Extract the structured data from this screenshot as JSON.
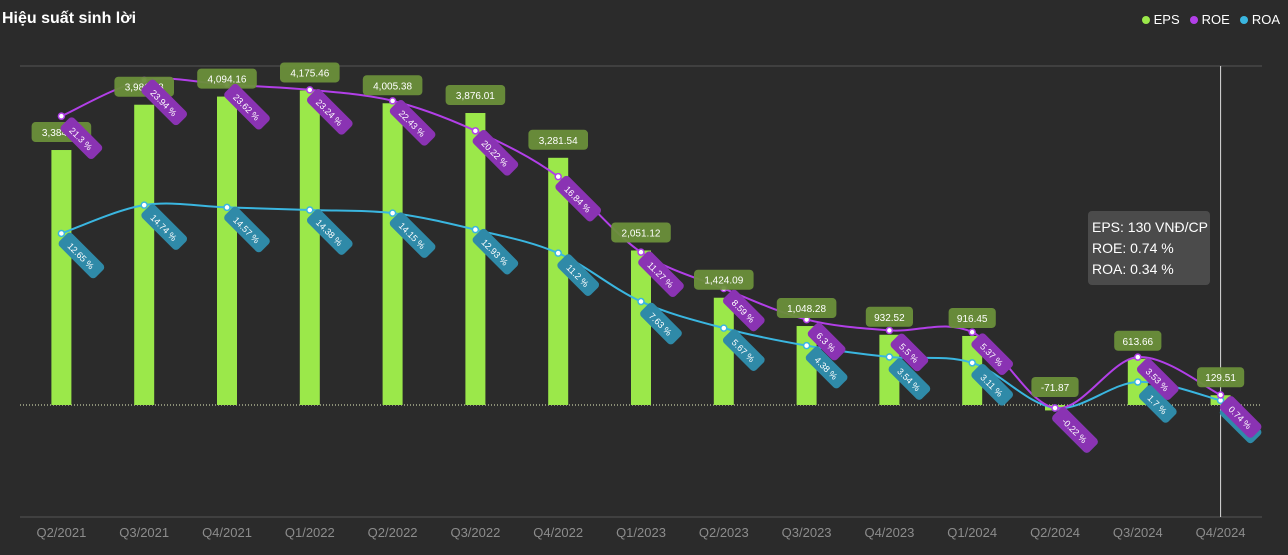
{
  "title": "Hiệu suất sinh lời",
  "legend": [
    {
      "name": "EPS",
      "color": "#9be84a"
    },
    {
      "name": "ROE",
      "color": "#b23fe8"
    },
    {
      "name": "ROA",
      "color": "#3ab6e0"
    }
  ],
  "tooltip": {
    "line1": "EPS: 130 VNĐ/CP",
    "line2": "ROE: 0.74 %",
    "line3": "ROA: 0.34 %"
  },
  "chart_data": {
    "type": "bar",
    "categories": [
      "Q2/2021",
      "Q3/2021",
      "Q4/2021",
      "Q1/2022",
      "Q2/2022",
      "Q3/2022",
      "Q4/2022",
      "Q1/2023",
      "Q2/2023",
      "Q3/2023",
      "Q4/2023",
      "Q1/2024",
      "Q2/2024",
      "Q3/2024",
      "Q4/2024"
    ],
    "series": [
      {
        "name": "EPS",
        "type": "bar",
        "color": "#9be84a",
        "values": [
          3384.67,
          3986.08,
          4094.16,
          4175.46,
          4005.38,
          3876.01,
          3281.54,
          2051.12,
          1424.09,
          1048.28,
          932.52,
          916.45,
          -71.87,
          613.66,
          129.51
        ],
        "labels": [
          "3,384.67",
          "3,986.08",
          "4,094.16",
          "4,175.46",
          "4,005.38",
          "3,876.01",
          "3,281.54",
          "2,051.12",
          "1,424.09",
          "1,048.28",
          "932.52",
          "916.45",
          "-71.87",
          "613.66",
          "129.51"
        ]
      },
      {
        "name": "ROE",
        "type": "line",
        "color": "#b23fe8",
        "values": [
          21.3,
          23.94,
          23.62,
          23.24,
          22.43,
          20.22,
          16.84,
          11.27,
          8.59,
          6.3,
          5.5,
          5.37,
          -0.22,
          3.53,
          0.74
        ],
        "labels": [
          "21.3 %",
          "23.94 %",
          "23.62 %",
          "23.24 %",
          "22.43 %",
          "20.22 %",
          "16.84 %",
          "11.27 %",
          "8.59 %",
          "6.3 %",
          "5.5 %",
          "5.37 %",
          "-0.22 %",
          "3.53 %",
          "0.74 %"
        ]
      },
      {
        "name": "ROA",
        "type": "line",
        "color": "#3ab6e0",
        "values": [
          12.65,
          14.74,
          14.57,
          14.38,
          14.15,
          12.93,
          11.2,
          7.63,
          5.67,
          4.38,
          3.54,
          3.11,
          -0.22,
          1.7,
          0.34
        ],
        "labels": [
          "12.65 %",
          "14.74 %",
          "14.57 %",
          "14.38 %",
          "14.15 %",
          "12.93 %",
          "11.2 %",
          "7.63 %",
          "5.67 %",
          "4.38 %",
          "3.54 %",
          "3.11 %",
          "-0.22 %",
          "1.7 %",
          "0.34 %"
        ]
      }
    ],
    "eps_range": [
      -1900,
      4500
    ],
    "pct_range": [
      -9.5,
      25
    ],
    "grid": true,
    "legend_position": "top-right",
    "highlight_category": "Q4/2024"
  }
}
